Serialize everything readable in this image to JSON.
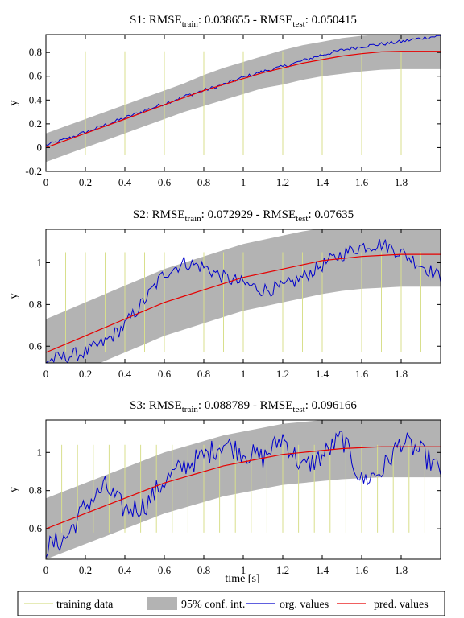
{
  "figure": {
    "xlabel": "time [s]",
    "legend": [
      {
        "label": "training data",
        "kind": "line",
        "color": "#d8df8c"
      },
      {
        "label": "95% conf. int.",
        "kind": "patch",
        "color": "#b3b3b3"
      },
      {
        "label": "org. values",
        "kind": "line",
        "color": "#0000cc"
      },
      {
        "label": "pred. values",
        "kind": "line",
        "color": "#e60000"
      }
    ],
    "colors": {
      "training": "#d8df8c",
      "band": "#b3b3b3",
      "org": "#0000cc",
      "pred": "#e60000",
      "axes": "#000000"
    }
  },
  "chart_data": [
    {
      "type": "line",
      "title": {
        "prefix": "S1: RMSE",
        "sub1": "train",
        "mid": ": 0.038655 - RMSE",
        "sub2": "test",
        "suffix": ": 0.050415"
      },
      "ylabel": "y",
      "xlim": [
        0,
        2
      ],
      "ylim": [
        -0.2,
        0.95
      ],
      "xticks": [
        0,
        0.2,
        0.4,
        0.6,
        0.8,
        1,
        1.2,
        1.4,
        1.6,
        1.8
      ],
      "xtick_labels": [
        "0",
        "0.2",
        "0.4",
        "0.6",
        "0.8",
        "1",
        "1.2",
        "1.4",
        "1.6",
        "1.8"
      ],
      "yticks": [
        -0.2,
        0,
        0.2,
        0.4,
        0.6,
        0.8
      ],
      "ytick_labels": [
        "-0.2",
        "0",
        "0.2",
        "0.4",
        "0.6",
        "0.8"
      ],
      "show_xlabel": false,
      "training_x": [
        0.2,
        0.4,
        0.6,
        0.8,
        1.0,
        1.2,
        1.4,
        1.6,
        1.8
      ],
      "training_y_range": [
        -0.06,
        0.81
      ],
      "x": [
        0,
        0.1,
        0.2,
        0.3,
        0.4,
        0.5,
        0.6,
        0.7,
        0.8,
        0.9,
        1.0,
        1.1,
        1.2,
        1.3,
        1.4,
        1.5,
        1.6,
        1.7,
        1.8,
        1.9,
        2.0
      ],
      "series": [
        {
          "name": "pred. values",
          "values": [
            0.0,
            0.06,
            0.12,
            0.18,
            0.24,
            0.3,
            0.36,
            0.42,
            0.48,
            0.53,
            0.58,
            0.63,
            0.67,
            0.71,
            0.74,
            0.77,
            0.79,
            0.805,
            0.81,
            0.81,
            0.81
          ]
        },
        {
          "name": "upper",
          "values": [
            0.12,
            0.18,
            0.24,
            0.3,
            0.36,
            0.42,
            0.48,
            0.54,
            0.61,
            0.67,
            0.72,
            0.77,
            0.82,
            0.86,
            0.89,
            0.92,
            0.94,
            0.95,
            0.96,
            0.96,
            0.96
          ]
        },
        {
          "name": "lower",
          "values": [
            -0.12,
            -0.06,
            0.0,
            0.06,
            0.12,
            0.18,
            0.24,
            0.3,
            0.35,
            0.4,
            0.45,
            0.5,
            0.53,
            0.57,
            0.6,
            0.62,
            0.64,
            0.655,
            0.66,
            0.66,
            0.66
          ]
        },
        {
          "name": "org. values",
          "values": [
            0.02,
            0.07,
            0.13,
            0.19,
            0.25,
            0.31,
            0.37,
            0.43,
            0.48,
            0.53,
            0.59,
            0.64,
            0.68,
            0.73,
            0.78,
            0.82,
            0.85,
            0.87,
            0.89,
            0.92,
            0.94
          ],
          "noise": 0.015
        }
      ]
    },
    {
      "type": "line",
      "title": {
        "prefix": "S2: RMSE",
        "sub1": "train",
        "mid": ": 0.072929 - RMSE",
        "sub2": "test",
        "suffix": ": 0.07635"
      },
      "ylabel": "y",
      "xlim": [
        0,
        2
      ],
      "ylim": [
        0.52,
        1.16
      ],
      "xticks": [
        0,
        0.2,
        0.4,
        0.6,
        0.8,
        1,
        1.2,
        1.4,
        1.6,
        1.8
      ],
      "xtick_labels": [
        "0",
        "0.2",
        "0.4",
        "0.6",
        "0.8",
        "1",
        "1.2",
        "1.4",
        "1.6",
        "1.8"
      ],
      "yticks": [
        0.6,
        0.8,
        1
      ],
      "ytick_labels": [
        "0.6",
        "0.8",
        "1"
      ],
      "show_xlabel": false,
      "training_x": [
        0.1,
        0.2,
        0.3,
        0.4,
        0.5,
        0.6,
        0.7,
        0.8,
        0.9,
        1.0,
        1.1,
        1.2,
        1.3,
        1.4,
        1.5,
        1.6,
        1.7,
        1.8,
        1.9
      ],
      "training_y_range": [
        0.57,
        1.05
      ],
      "x": [
        0,
        0.1,
        0.2,
        0.3,
        0.4,
        0.5,
        0.6,
        0.7,
        0.8,
        0.9,
        1.0,
        1.1,
        1.2,
        1.3,
        1.4,
        1.5,
        1.6,
        1.7,
        1.8,
        1.9,
        2.0
      ],
      "series": [
        {
          "name": "pred. values",
          "values": [
            0.57,
            0.61,
            0.65,
            0.69,
            0.73,
            0.77,
            0.81,
            0.84,
            0.87,
            0.9,
            0.93,
            0.95,
            0.97,
            0.99,
            1.01,
            1.02,
            1.03,
            1.035,
            1.04,
            1.04,
            1.04
          ]
        },
        {
          "name": "upper",
          "values": [
            0.73,
            0.77,
            0.81,
            0.85,
            0.89,
            0.93,
            0.97,
            1.0,
            1.03,
            1.06,
            1.09,
            1.11,
            1.13,
            1.15,
            1.165,
            1.175,
            1.185,
            1.19,
            1.195,
            1.2,
            1.2
          ]
        },
        {
          "name": "lower",
          "values": [
            0.41,
            0.45,
            0.49,
            0.53,
            0.57,
            0.61,
            0.65,
            0.68,
            0.71,
            0.74,
            0.77,
            0.79,
            0.81,
            0.83,
            0.85,
            0.865,
            0.875,
            0.88,
            0.885,
            0.885,
            0.885
          ]
        },
        {
          "name": "org. values",
          "values": [
            0.53,
            0.55,
            0.57,
            0.62,
            0.7,
            0.82,
            0.95,
            1.0,
            0.98,
            0.93,
            0.9,
            0.87,
            0.88,
            0.93,
            0.99,
            1.04,
            1.08,
            1.09,
            1.05,
            0.99,
            0.93
          ],
          "noise": 0.035
        }
      ]
    },
    {
      "type": "line",
      "title": {
        "prefix": "S3: RMSE",
        "sub1": "train",
        "mid": ": 0.088789 - RMSE",
        "sub2": "test",
        "suffix": ": 0.096166"
      },
      "ylabel": "y",
      "xlim": [
        0,
        2
      ],
      "ylim": [
        0.44,
        1.17
      ],
      "xticks": [
        0,
        0.2,
        0.4,
        0.6,
        0.8,
        1,
        1.2,
        1.4,
        1.6,
        1.8
      ],
      "xtick_labels": [
        "0",
        "0.2",
        "0.4",
        "0.6",
        "0.8",
        "1",
        "1.2",
        "1.4",
        "1.6",
        "1.8"
      ],
      "yticks": [
        0.6,
        0.8,
        1
      ],
      "ytick_labels": [
        "0.6",
        "0.8",
        "1"
      ],
      "show_xlabel": true,
      "training_x": [
        0.08,
        0.16,
        0.24,
        0.32,
        0.4,
        0.48,
        0.56,
        0.64,
        0.72,
        0.8,
        0.88,
        0.96,
        1.04,
        1.12,
        1.2,
        1.28,
        1.36,
        1.44,
        1.52,
        1.6,
        1.68,
        1.76,
        1.84,
        1.92
      ],
      "training_y_range": [
        0.58,
        1.04
      ],
      "x": [
        0,
        0.1,
        0.2,
        0.3,
        0.4,
        0.5,
        0.6,
        0.7,
        0.8,
        0.9,
        1.0,
        1.1,
        1.2,
        1.3,
        1.4,
        1.5,
        1.6,
        1.7,
        1.8,
        1.9,
        2.0
      ],
      "series": [
        {
          "name": "pred. values",
          "values": [
            0.6,
            0.64,
            0.68,
            0.72,
            0.76,
            0.8,
            0.84,
            0.87,
            0.9,
            0.93,
            0.95,
            0.97,
            0.99,
            1.0,
            1.01,
            1.02,
            1.025,
            1.03,
            1.03,
            1.03,
            1.03
          ]
        },
        {
          "name": "upper",
          "values": [
            0.76,
            0.8,
            0.84,
            0.88,
            0.92,
            0.96,
            1.0,
            1.03,
            1.06,
            1.09,
            1.11,
            1.13,
            1.15,
            1.16,
            1.17,
            1.18,
            1.185,
            1.19,
            1.19,
            1.19,
            1.19
          ]
        },
        {
          "name": "lower",
          "values": [
            0.44,
            0.48,
            0.52,
            0.56,
            0.6,
            0.64,
            0.68,
            0.71,
            0.74,
            0.77,
            0.79,
            0.81,
            0.83,
            0.84,
            0.85,
            0.86,
            0.865,
            0.87,
            0.87,
            0.87,
            0.87
          ]
        },
        {
          "name": "org. values",
          "values": [
            0.5,
            0.55,
            0.72,
            0.82,
            0.7,
            0.72,
            0.85,
            0.93,
            0.98,
            1.05,
            1.0,
            0.97,
            1.08,
            0.92,
            0.98,
            1.08,
            0.85,
            0.9,
            1.06,
            1.0,
            0.9
          ],
          "noise": 0.06
        }
      ]
    }
  ]
}
